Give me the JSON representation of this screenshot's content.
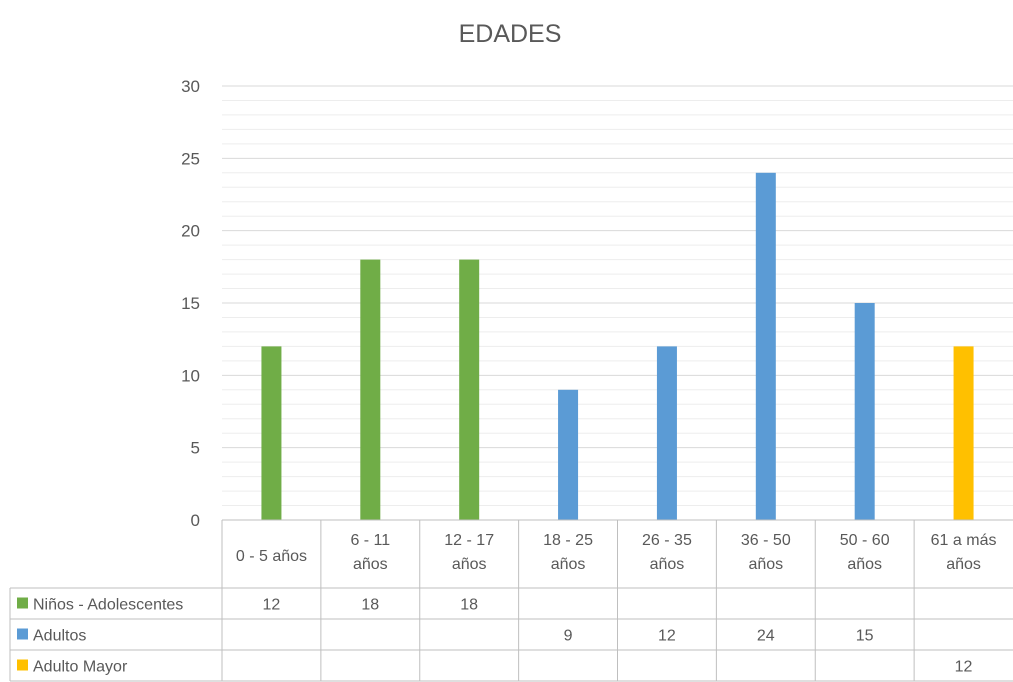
{
  "chart_data": {
    "type": "bar",
    "title": "EDADES",
    "categories": [
      [
        "0 - 5 años"
      ],
      [
        "6 - 11",
        "años"
      ],
      [
        "12 - 17",
        "años"
      ],
      [
        "18 - 25",
        "años"
      ],
      [
        "26 - 35",
        "años"
      ],
      [
        "36 - 50",
        "años"
      ],
      [
        "50 - 60",
        "años"
      ],
      [
        "61 a más",
        "años"
      ]
    ],
    "ylim": [
      0,
      30
    ],
    "yticks": [
      0,
      5,
      10,
      15,
      20,
      25,
      30
    ],
    "grid": true,
    "legend": "data-table",
    "series": [
      {
        "name": "Niños - Adolescentes",
        "color": "#70AD47",
        "values": [
          12,
          18,
          18,
          null,
          null,
          null,
          null,
          null
        ]
      },
      {
        "name": "Adultos",
        "color": "#5B9BD5",
        "values": [
          null,
          null,
          null,
          9,
          12,
          24,
          15,
          null
        ]
      },
      {
        "name": "Adulto Mayor",
        "color": "#FFC000",
        "values": [
          null,
          null,
          null,
          null,
          null,
          null,
          null,
          12
        ]
      }
    ]
  }
}
